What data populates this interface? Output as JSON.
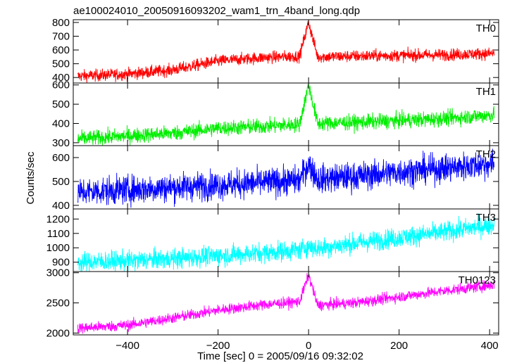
{
  "chart_data": {
    "type": "line",
    "title": "ae100024010_20050916093202_wam1_trn_4band_long.qdp",
    "xlabel": "Time [sec] 0 = 2005/09/16 09:32:02",
    "ylabel": "Counts/sec",
    "xlim": [
      -520,
      420
    ],
    "xticks": [
      -400,
      -200,
      0,
      200,
      400
    ],
    "grid": false,
    "panels": [
      {
        "name": "TH0",
        "color": "#ff0000",
        "ylim": [
          360,
          820
        ],
        "yticks": [
          400,
          500,
          600,
          700,
          800
        ],
        "x": [
          -510,
          -400,
          -300,
          -200,
          -100,
          -20,
          0,
          20,
          100,
          200,
          300,
          410
        ],
        "y": [
          410,
          425,
          455,
          520,
          545,
          555,
          800,
          550,
          555,
          560,
          565,
          575
        ],
        "noise": 22
      },
      {
        "name": "TH1",
        "color": "#00ee00",
        "ylim": [
          285,
          610
        ],
        "yticks": [
          300,
          400,
          500,
          600
        ],
        "x": [
          -510,
          -400,
          -300,
          -200,
          -100,
          -20,
          0,
          20,
          100,
          200,
          300,
          410
        ],
        "y": [
          320,
          335,
          350,
          375,
          385,
          395,
          600,
          400,
          405,
          415,
          425,
          445
        ],
        "noise": 20
      },
      {
        "name": "TH2",
        "color": "#0000ff",
        "ylim": [
          385,
          650
        ],
        "yticks": [
          400,
          500,
          600
        ],
        "x": [
          -510,
          -400,
          -300,
          -200,
          -100,
          -20,
          0,
          20,
          100,
          200,
          300,
          410
        ],
        "y": [
          455,
          465,
          475,
          485,
          495,
          505,
          575,
          510,
          520,
          540,
          555,
          575
        ],
        "noise": 30
      },
      {
        "name": "TH3",
        "color": "#00ffff",
        "ylim": [
          835,
          1270
        ],
        "yticks": [
          900,
          1000,
          1100,
          1200
        ],
        "x": [
          -510,
          -400,
          -300,
          -200,
          -100,
          -20,
          0,
          20,
          100,
          200,
          300,
          410
        ],
        "y": [
          900,
          910,
          925,
          945,
          965,
          985,
          1010,
          995,
          1030,
          1070,
          1110,
          1160
        ],
        "noise": 35
      },
      {
        "name": "TH0123",
        "color": "#ff00ff",
        "ylim": [
          1970,
          3020
        ],
        "yticks": [
          2000,
          2500,
          3000
        ],
        "x": [
          -510,
          -400,
          -300,
          -200,
          -100,
          -20,
          0,
          20,
          100,
          200,
          300,
          410
        ],
        "y": [
          2080,
          2130,
          2250,
          2380,
          2470,
          2520,
          2960,
          2460,
          2500,
          2600,
          2700,
          2800
        ],
        "noise": 45
      }
    ]
  }
}
